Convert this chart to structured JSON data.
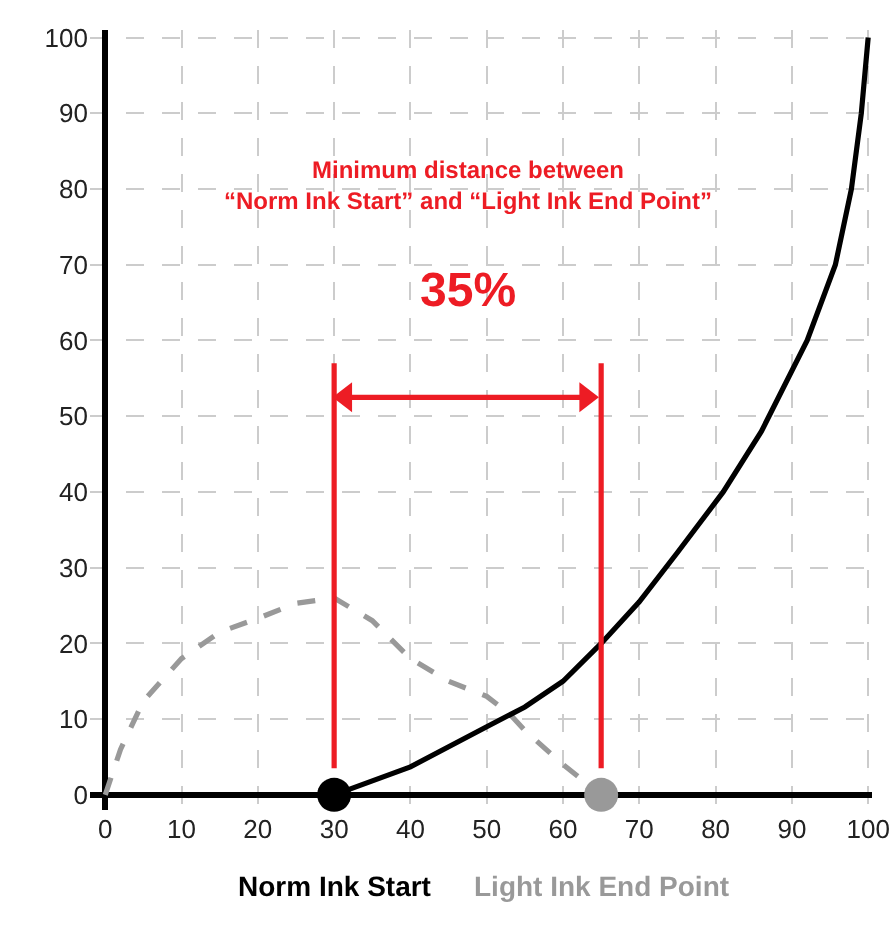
{
  "chart_data": {
    "type": "line",
    "xlim": [
      -2,
      100.5
    ],
    "ylim": [
      -2,
      101
    ],
    "xticks": [
      0,
      10,
      20,
      30,
      40,
      50,
      60,
      70,
      80,
      90,
      100
    ],
    "yticks": [
      0,
      10,
      20,
      30,
      40,
      50,
      60,
      70,
      80,
      90,
      100
    ],
    "grid": true,
    "legend": false,
    "series": [
      {
        "color": "#999999",
        "line_style": "dashed",
        "x": [
          0,
          2,
          5,
          10,
          15,
          20,
          25,
          30,
          35,
          40,
          45,
          50,
          53,
          55,
          60,
          65
        ],
        "values": [
          0,
          6,
          12.4,
          18,
          21.5,
          23.3,
          25.3,
          26,
          23,
          18,
          15,
          13,
          10.7,
          8.5,
          4,
          0
        ]
      },
      {
        "color": "#000000",
        "line_style": "solid",
        "x": [
          30,
          40,
          50,
          55,
          60,
          65,
          70,
          75,
          81,
          86,
          92,
          95.7,
          97.8,
          99.1,
          100
        ],
        "values": [
          0,
          3.7,
          9,
          11.6,
          15,
          20,
          25.5,
          32,
          40,
          48,
          60,
          70,
          80,
          90,
          100
        ]
      },
      {
        "type": "line",
        "color": "#ed1c24",
        "line_style": "solid",
        "x": [
          30,
          30
        ],
        "values": [
          3.5,
          57
        ]
      },
      {
        "type": "line",
        "color": "#ed1c24",
        "line_style": "solid",
        "x": [
          65,
          65
        ],
        "values": [
          3.5,
          57
        ]
      },
      {
        "type": "line",
        "color": "#ed1c24",
        "line_style": "solid",
        "marker": "triangle",
        "x": [
          31.5,
          63
        ],
        "values": [
          52.5,
          52.5
        ]
      },
      {
        "type": "scatter",
        "name": "Norm Ink Start",
        "color": "#000000",
        "marker": "circle",
        "x": [
          30
        ],
        "values": [
          0
        ]
      },
      {
        "type": "scatter",
        "name": "Light Ink End Point",
        "color": "#999999",
        "marker": "circle",
        "x": [
          65
        ],
        "values": [
          0
        ]
      }
    ],
    "annotations": [
      "Minimum distance between\n“Norm Ink Start” and “Light Ink End Point”",
      "35%"
    ]
  }
}
